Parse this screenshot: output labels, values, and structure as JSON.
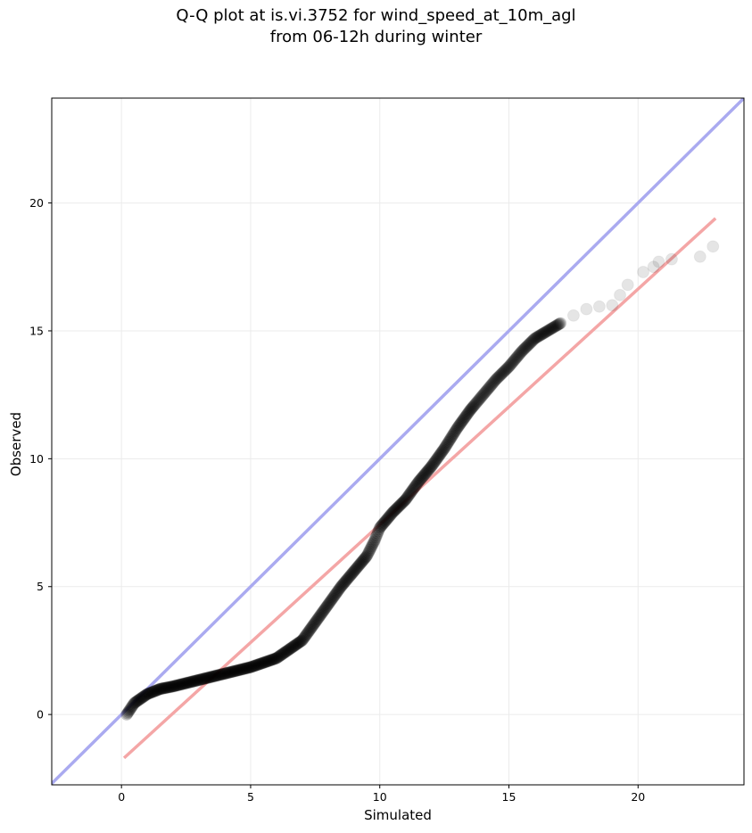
{
  "chart_data": {
    "type": "scatter",
    "title": "Q-Q plot at is.vi.3752 for wind_speed_at_10m_agl",
    "subtitle": "from 06-12h during winter",
    "xlabel": "Simulated",
    "ylabel": "Observed",
    "xlim": [
      -2.7,
      24.1
    ],
    "ylim": [
      -2.75,
      24.1
    ],
    "xticks": [
      0,
      5,
      10,
      15,
      20
    ],
    "yticks": [
      0,
      5,
      10,
      15,
      20
    ],
    "xtick_labels": [
      "0",
      "5",
      "10",
      "15",
      "20"
    ],
    "ytick_labels": [
      "0",
      "5",
      "10",
      "15",
      "20"
    ],
    "grid": true,
    "reference_lines": [
      {
        "kind": "identity",
        "color": "#aaaaf0",
        "x": [
          -2.7,
          24.1
        ],
        "y": [
          -2.7,
          24.1
        ]
      },
      {
        "kind": "fit",
        "color": "#f4a6a6",
        "x": [
          0.1,
          23.0
        ],
        "y": [
          -1.7,
          19.4
        ]
      }
    ],
    "quantile_curve": {
      "x": [
        0.2,
        0.5,
        1.0,
        1.5,
        2.0,
        3.0,
        4.0,
        5.0,
        6.0,
        7.0,
        7.5,
        8.0,
        8.5,
        9.0,
        9.5,
        9.8,
        10.0,
        10.5,
        11.0,
        11.5,
        12.0,
        12.5,
        13.0,
        13.5,
        14.0,
        14.5,
        15.0,
        15.5,
        16.0,
        16.5,
        17.0
      ],
      "y": [
        0.0,
        0.45,
        0.8,
        1.0,
        1.1,
        1.35,
        1.6,
        1.85,
        2.2,
        2.9,
        3.6,
        4.3,
        5.0,
        5.6,
        6.2,
        6.8,
        7.3,
        7.9,
        8.4,
        9.1,
        9.7,
        10.4,
        11.2,
        11.9,
        12.5,
        13.1,
        13.6,
        14.2,
        14.7,
        15.0,
        15.3
      ]
    },
    "sparse_points": {
      "x": [
        17.5,
        18.0,
        18.5,
        19.0,
        19.3,
        19.6,
        20.2,
        20.6,
        20.8,
        21.3,
        22.4,
        22.9
      ],
      "y": [
        15.6,
        15.85,
        15.95,
        16.0,
        16.4,
        16.8,
        17.3,
        17.5,
        17.7,
        17.8,
        17.9,
        18.3
      ]
    },
    "point_color": "#000000"
  }
}
